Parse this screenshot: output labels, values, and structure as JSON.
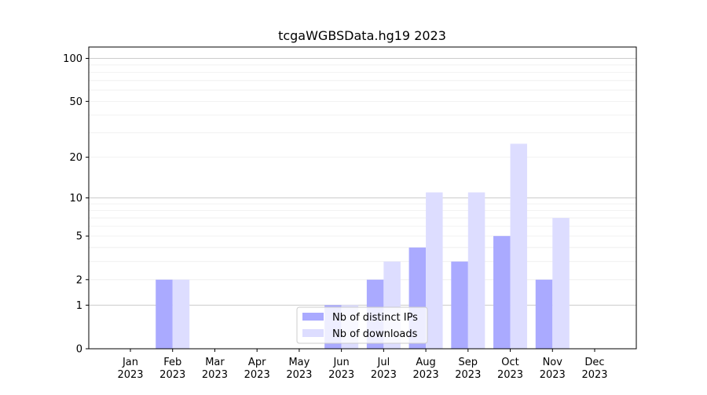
{
  "chart_data": {
    "type": "bar",
    "title": "tcgaWGBSData.hg19 2023",
    "xlabel": "",
    "ylabel": "",
    "y_scale": "log1p",
    "ylim": [
      0,
      120
    ],
    "y_ticks": [
      0,
      1,
      2,
      5,
      10,
      20,
      50,
      100
    ],
    "y_tick_labels": [
      "0",
      "1",
      "2",
      "5",
      "10",
      "20",
      "50",
      "100"
    ],
    "grid": true,
    "legend_position": "bottom-center",
    "categories": [
      {
        "month": "Jan",
        "year": "2023"
      },
      {
        "month": "Feb",
        "year": "2023"
      },
      {
        "month": "Mar",
        "year": "2023"
      },
      {
        "month": "Apr",
        "year": "2023"
      },
      {
        "month": "May",
        "year": "2023"
      },
      {
        "month": "Jun",
        "year": "2023"
      },
      {
        "month": "Jul",
        "year": "2023"
      },
      {
        "month": "Aug",
        "year": "2023"
      },
      {
        "month": "Sep",
        "year": "2023"
      },
      {
        "month": "Oct",
        "year": "2023"
      },
      {
        "month": "Nov",
        "year": "2023"
      },
      {
        "month": "Dec",
        "year": "2023"
      }
    ],
    "series": [
      {
        "name": "Nb of distinct IPs",
        "color": "#aaaaff",
        "values": [
          0,
          2,
          0,
          0,
          0,
          1,
          2,
          4,
          3,
          5,
          2,
          0
        ]
      },
      {
        "name": "Nb of downloads",
        "color": "#ddddff",
        "values": [
          0,
          2,
          0,
          0,
          0,
          1,
          3,
          11,
          11,
          25,
          7,
          0
        ]
      }
    ]
  }
}
